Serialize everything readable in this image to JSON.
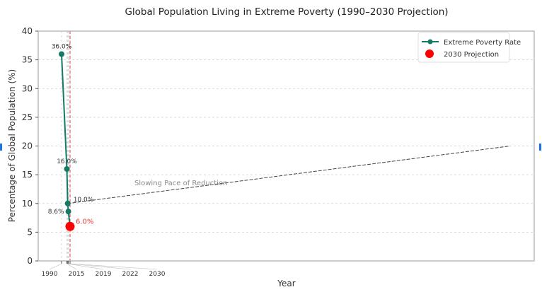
{
  "chart_data": {
    "type": "line",
    "title": "Global Population Living in Extreme Poverty (1990–2030 Projection)",
    "xlabel": "Year",
    "ylabel": "Percentage of Global Population (%)",
    "xlim": [
      1880,
      4217
    ],
    "ylim": [
      0,
      40
    ],
    "yticks": [
      0,
      5,
      10,
      15,
      20,
      25,
      30,
      35,
      40
    ],
    "xticks": [
      1990,
      2015,
      2019,
      2022,
      2030
    ],
    "grid": true,
    "legend_position": "top-right",
    "series": [
      {
        "name": "Extreme Poverty Rate",
        "color": "#137a63",
        "x": [
          1990,
          2015,
          2019,
          2022,
          2030
        ],
        "y": [
          36.0,
          16.0,
          10.0,
          8.6,
          6.0
        ],
        "labels": [
          "36.0%",
          "16.0%",
          "10.0%",
          "8.6%"
        ]
      },
      {
        "name": "2030 Projection",
        "color": "#ff0000",
        "x": [
          2030
        ],
        "y": [
          6.0
        ],
        "labels": [
          "6.0%"
        ]
      }
    ],
    "projection_line_x": 2030,
    "annotation": {
      "text": "Slowing Pace of Reduction",
      "from": [
        2019,
        10.0
      ],
      "to": [
        4103,
        20.0
      ]
    }
  }
}
